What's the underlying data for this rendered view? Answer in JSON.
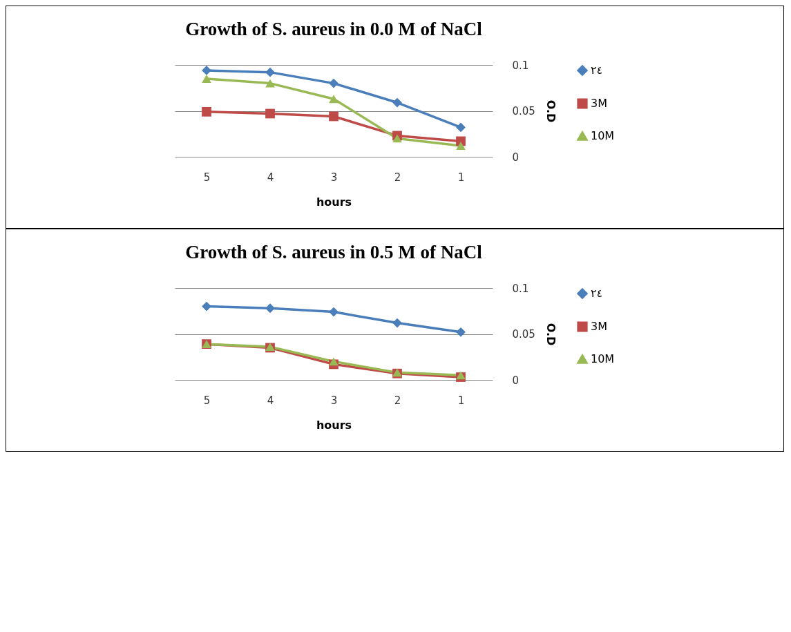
{
  "chart_data": [
    {
      "type": "line",
      "title": "Growth of S. aureus in 0.0 M of NaCl",
      "xlabel": "hours",
      "ylabel": "O.D",
      "categories": [
        "5",
        "4",
        "3",
        "2",
        "1"
      ],
      "ylim": [
        0,
        0.1
      ],
      "yticks": [
        0,
        0.05,
        0.1
      ],
      "grid": "y",
      "legend": "right",
      "series": [
        {
          "name": "٢٤",
          "color": "#4a7ebb",
          "marker": "diamond",
          "values": [
            0.094,
            0.092,
            0.08,
            0.059,
            0.032
          ]
        },
        {
          "name": "3M",
          "color": "#be4b48",
          "marker": "square",
          "values": [
            0.049,
            0.047,
            0.044,
            0.023,
            0.017
          ]
        },
        {
          "name": "10M",
          "color": "#98b954",
          "marker": "triangle",
          "values": [
            0.085,
            0.08,
            0.063,
            0.02,
            0.012
          ]
        }
      ]
    },
    {
      "type": "line",
      "title": "Growth of S. aureus in 0.5 M of NaCl",
      "xlabel": "hours",
      "ylabel": "O.D",
      "categories": [
        "5",
        "4",
        "3",
        "2",
        "1"
      ],
      "ylim": [
        0,
        0.1
      ],
      "yticks": [
        0,
        0.05,
        0.1
      ],
      "grid": "y",
      "legend": "right",
      "series": [
        {
          "name": "٢٤",
          "color": "#4a7ebb",
          "marker": "diamond",
          "values": [
            0.08,
            0.078,
            0.074,
            0.062,
            0.052
          ]
        },
        {
          "name": "3M",
          "color": "#be4b48",
          "marker": "square",
          "values": [
            0.039,
            0.035,
            0.017,
            0.007,
            0.003
          ]
        },
        {
          "name": "10M",
          "color": "#98b954",
          "marker": "triangle",
          "values": [
            0.039,
            0.036,
            0.02,
            0.008,
            0.005
          ]
        }
      ]
    }
  ]
}
